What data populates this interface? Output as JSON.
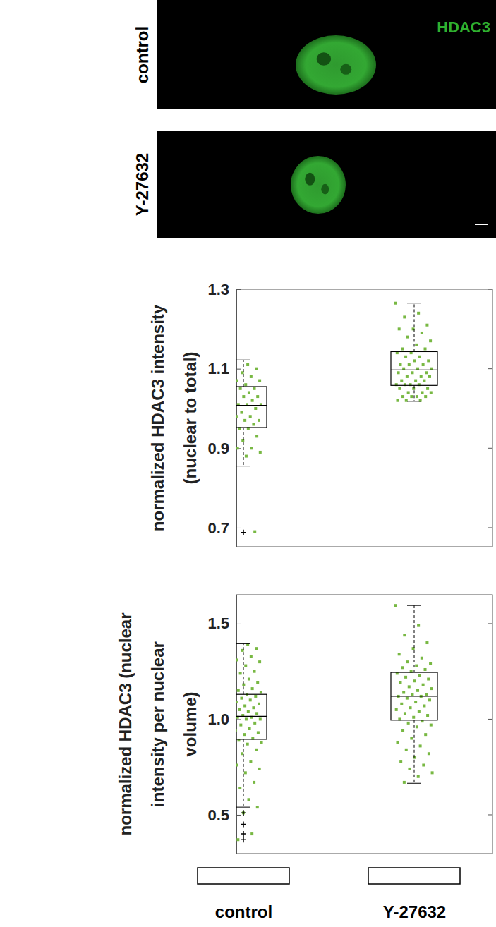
{
  "images": {
    "channel": "HDAC3",
    "rows": [
      "control",
      "Y-27632"
    ]
  },
  "chart_data": [
    {
      "type": "box",
      "ylabel": "normalized HDAC3 intensity (nuclear to total)",
      "categories": [
        "control",
        "Y-27632"
      ],
      "ylim": [
        0.652,
        1.3
      ],
      "yticks": [
        0.7,
        0.9,
        1.1,
        1.3
      ],
      "tick_labels": "y",
      "color": "#78b843",
      "boxes": [
        {
          "q1": 0.952,
          "median": 1.008,
          "q3": 1.055,
          "whisker_low": 0.855,
          "whisker_high": 1.122,
          "outliers": [
            0.688
          ]
        },
        {
          "q1": 1.058,
          "median": 1.097,
          "q3": 1.143,
          "whisker_low": 1.018,
          "whisker_high": 1.265,
          "outliers": []
        }
      ],
      "points": [
        [
          1.12,
          1.11,
          1.1,
          1.1,
          1.09,
          1.08,
          1.08,
          1.07,
          1.07,
          1.06,
          1.06,
          1.05,
          1.05,
          1.05,
          1.04,
          1.04,
          1.03,
          1.03,
          1.02,
          1.02,
          1.01,
          1.01,
          1.01,
          1.0,
          1.0,
          0.99,
          0.99,
          0.98,
          0.98,
          0.97,
          0.97,
          0.96,
          0.96,
          0.95,
          0.95,
          0.95,
          0.94,
          0.93,
          0.92,
          0.91,
          0.9,
          0.9,
          0.89,
          0.88,
          0.86,
          0.69
        ],
        [
          1.265,
          1.24,
          1.23,
          1.21,
          1.2,
          1.2,
          1.19,
          1.18,
          1.17,
          1.16,
          1.15,
          1.15,
          1.14,
          1.14,
          1.13,
          1.13,
          1.12,
          1.12,
          1.11,
          1.11,
          1.11,
          1.1,
          1.1,
          1.1,
          1.09,
          1.09,
          1.09,
          1.08,
          1.08,
          1.08,
          1.07,
          1.07,
          1.07,
          1.06,
          1.06,
          1.06,
          1.06,
          1.05,
          1.05,
          1.05,
          1.04,
          1.04,
          1.04,
          1.03,
          1.03,
          1.03,
          1.03,
          1.02,
          1.02,
          1.02
        ]
      ]
    },
    {
      "type": "box",
      "ylabel": "normalized HDAC3 (nuclear intensity per nuclear volume)",
      "categories": [
        "control",
        "Y-27632"
      ],
      "ylim": [
        0.297,
        1.651
      ],
      "yticks": [
        0.5,
        {
          "value": 1,
          "label": "1.0"
        },
        1.5
      ],
      "color": "#78b843",
      "boxes": [
        {
          "q1": 0.895,
          "median": 1.015,
          "q3": 1.13,
          "whisker_low": 0.54,
          "whisker_high": 1.395,
          "outliers": [
            0.51,
            0.45,
            0.4,
            0.37
          ]
        },
        {
          "q1": 0.995,
          "median": 1.12,
          "q3": 1.245,
          "whisker_low": 0.665,
          "whisker_high": 1.595,
          "outliers": []
        }
      ],
      "points": [
        [
          1.4,
          1.39,
          1.38,
          1.37,
          1.36,
          1.34,
          1.33,
          1.31,
          1.3,
          1.28,
          1.27,
          1.25,
          1.24,
          1.22,
          1.21,
          1.2,
          1.19,
          1.18,
          1.17,
          1.16,
          1.15,
          1.14,
          1.13,
          1.13,
          1.12,
          1.11,
          1.1,
          1.1,
          1.09,
          1.08,
          1.07,
          1.07,
          1.06,
          1.05,
          1.05,
          1.04,
          1.03,
          1.03,
          1.02,
          1.02,
          1.01,
          1.01,
          1.0,
          1.0,
          0.99,
          0.98,
          0.97,
          0.96,
          0.95,
          0.94,
          0.93,
          0.92,
          0.91,
          0.9,
          0.89,
          0.88,
          0.87,
          0.86,
          0.84,
          0.82,
          0.8,
          0.78,
          0.76,
          0.74,
          0.72,
          0.7,
          0.67,
          0.64,
          0.61,
          0.58,
          0.55,
          0.54,
          0.51,
          0.45,
          0.4,
          0.37
        ],
        [
          1.595,
          1.49,
          1.44,
          1.4,
          1.37,
          1.34,
          1.32,
          1.3,
          1.29,
          1.28,
          1.27,
          1.26,
          1.25,
          1.24,
          1.23,
          1.22,
          1.21,
          1.2,
          1.19,
          1.18,
          1.17,
          1.16,
          1.15,
          1.14,
          1.13,
          1.13,
          1.12,
          1.12,
          1.11,
          1.1,
          1.09,
          1.08,
          1.07,
          1.06,
          1.05,
          1.04,
          1.03,
          1.02,
          1.01,
          1.0,
          0.99,
          0.98,
          0.97,
          0.96,
          0.94,
          0.92,
          0.9,
          0.88,
          0.86,
          0.84,
          0.82,
          0.8,
          0.78,
          0.76,
          0.74,
          0.72,
          0.7,
          0.67
        ]
      ]
    }
  ]
}
